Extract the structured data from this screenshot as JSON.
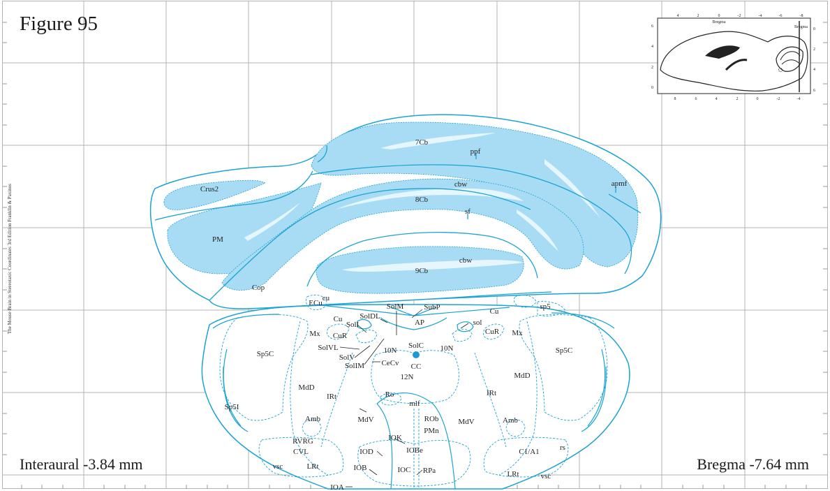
{
  "figure": {
    "title": "Figure 95",
    "interaural": "Interaural -3.84 mm",
    "bregma": "Bregma -7.64 mm",
    "credit": "The Mouse Brain in Stereotaxic Coordinates 3rd Edition Franklin & Paxinos"
  },
  "colors": {
    "outline": "#1aa3d4",
    "fill_light": "#a8dcf4",
    "stripe": "#e6f6fd",
    "grid": "#b3b3b3",
    "dot": "#1a9ad6"
  },
  "inset": {
    "top_ticks": [
      "4",
      "2",
      "0",
      "-2",
      "-4",
      "-6",
      "-8"
    ],
    "bottom_ticks": [
      "8",
      "6",
      "4",
      "2",
      "0",
      "-2",
      "-4"
    ],
    "left_ticks": [
      "6",
      "4",
      "2",
      "0"
    ],
    "right_ticks": [
      "0",
      "2",
      "4",
      "6"
    ],
    "top_label": "Bregma",
    "right_label": "Bregma"
  },
  "labels": {
    "7Cb": "7Cb",
    "ppf": "ppf",
    "apmf": "apmf",
    "Crus2": "Crus2",
    "cbw1": "cbw",
    "8Cb": "8Cb",
    "sf": "sf",
    "PM": "PM",
    "cbw2": "cbw",
    "9Cb": "9Cb",
    "Cop": "Cop",
    "cu": "cu",
    "ECu": "ECu",
    "SolM": "SolM",
    "SubP": "SubP",
    "CuL": "Cu",
    "SolDL": "SolDL",
    "AP": "AP",
    "CuR_r": "Cu",
    "sp5": "sp5",
    "SolI": "SolI",
    "sol": "sol",
    "CuR_l": "CuR",
    "CuR_r2": "CuR",
    "MxL": "Mx",
    "MxR": "Mx",
    "SolVL": "SolVL",
    "TenNL": "10N",
    "SolC": "SolC",
    "TenNR": "10N",
    "Sp5CL": "Sp5C",
    "Sp5CR": "Sp5C",
    "SolV": "SolV",
    "CeCv": "CeCv",
    "SolIM": "SolIM",
    "CC": "CC",
    "TwelveN": "12N",
    "MdDL": "MdD",
    "MdDR": "MdD",
    "IRtL": "IRt",
    "IRtR": "IRt",
    "Ro": "Ro",
    "mlf": "mlf",
    "Sp5I": "Sp5I",
    "AmbL": "Amb",
    "AmbR": "Amb",
    "MdVL": "MdV",
    "MdVR": "MdV",
    "ROb": "ROb",
    "PMn": "PMn",
    "IOK": "IOK",
    "RVRG": "RVRG",
    "CVL": "CVL",
    "IOD": "IOD",
    "IOBe": "IOBe",
    "C1A1": "C1/A1",
    "rs": "rs",
    "vscL": "vsc",
    "vscR": "vsc",
    "LRtL": "LRt",
    "LRtR": "LRt",
    "IOB": "IOB",
    "IOC": "IOC",
    "RPa": "RPa",
    "IOA": "IOA"
  }
}
